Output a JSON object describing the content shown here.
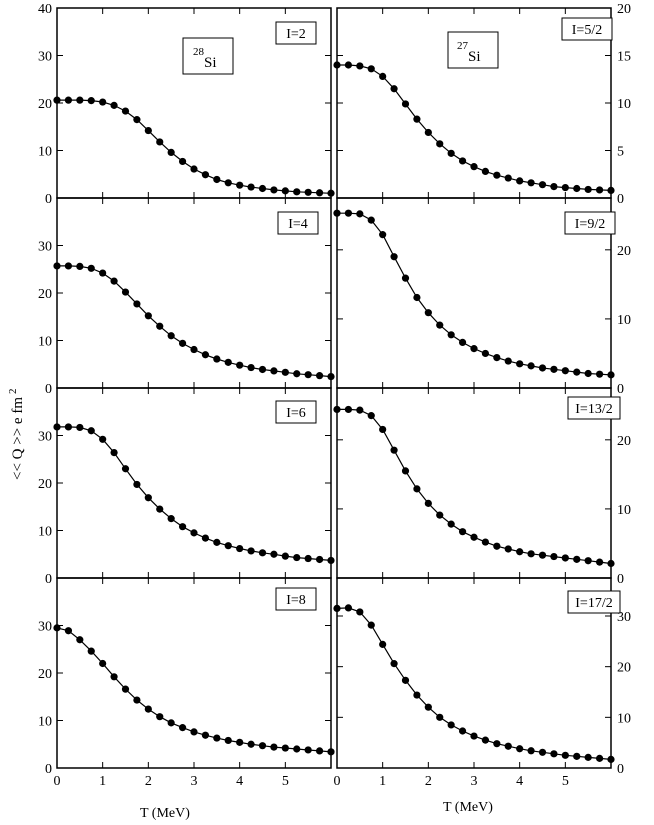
{
  "figure": {
    "xlabel": "T (MeV)",
    "ylabel_main": "<< Q >> e fm",
    "ylabel_sup": "2",
    "nuclei": [
      {
        "mass": "28",
        "symbol": "Si"
      },
      {
        "mass": "27",
        "symbol": "Si"
      }
    ]
  },
  "chart_data": [
    {
      "type": "line",
      "nucleus": "28Si",
      "panel_label": "I=2",
      "xlim": [
        0,
        6
      ],
      "ylim": [
        0,
        40
      ],
      "yticks": [
        "0",
        "10",
        "20",
        "30",
        "40"
      ],
      "xticks": [
        "0",
        "1",
        "2",
        "3",
        "4",
        "5"
      ],
      "axis_side": "left",
      "x": [
        0,
        0.25,
        0.5,
        0.75,
        1,
        1.25,
        1.5,
        1.75,
        2,
        2.25,
        2.5,
        2.75,
        3,
        3.25,
        3.5,
        3.75,
        4,
        4.25,
        4.5,
        4.75,
        5,
        5.25,
        5.5,
        5.75,
        6
      ],
      "y": [
        20.6,
        20.6,
        20.6,
        20.5,
        20.2,
        19.5,
        18.3,
        16.5,
        14.2,
        11.8,
        9.6,
        7.7,
        6.1,
        4.9,
        3.9,
        3.2,
        2.7,
        2.3,
        2.0,
        1.7,
        1.5,
        1.3,
        1.2,
        1.1,
        1.0
      ]
    },
    {
      "type": "line",
      "nucleus": "27Si",
      "panel_label": "I=5/2",
      "xlim": [
        0,
        6
      ],
      "ylim": [
        0,
        20
      ],
      "yticks": [
        "0",
        "5",
        "10",
        "15",
        "20"
      ],
      "xticks": [
        "0",
        "1",
        "2",
        "3",
        "4",
        "5"
      ],
      "axis_side": "right",
      "x": [
        0,
        0.25,
        0.5,
        0.75,
        1,
        1.25,
        1.5,
        1.75,
        2,
        2.25,
        2.5,
        2.75,
        3,
        3.25,
        3.5,
        3.75,
        4,
        4.25,
        4.5,
        4.75,
        5,
        5.25,
        5.5,
        5.75,
        6
      ],
      "y": [
        14.0,
        14.0,
        13.9,
        13.6,
        12.8,
        11.5,
        9.9,
        8.3,
        6.9,
        5.7,
        4.7,
        3.9,
        3.3,
        2.8,
        2.4,
        2.1,
        1.8,
        1.6,
        1.4,
        1.2,
        1.1,
        1.0,
        0.9,
        0.85,
        0.8
      ]
    },
    {
      "type": "line",
      "nucleus": "28Si",
      "panel_label": "I=4",
      "xlim": [
        0,
        6
      ],
      "ylim": [
        0,
        40
      ],
      "yticks": [
        "0",
        "10",
        "20",
        "30"
      ],
      "xticks": [
        "0",
        "1",
        "2",
        "3",
        "4",
        "5"
      ],
      "axis_side": "left",
      "x": [
        0,
        0.25,
        0.5,
        0.75,
        1,
        1.25,
        1.5,
        1.75,
        2,
        2.25,
        2.5,
        2.75,
        3,
        3.25,
        3.5,
        3.75,
        4,
        4.25,
        4.5,
        4.75,
        5,
        5.25,
        5.5,
        5.75,
        6
      ],
      "y": [
        25.7,
        25.7,
        25.6,
        25.2,
        24.2,
        22.5,
        20.2,
        17.7,
        15.2,
        13.0,
        11.0,
        9.4,
        8.1,
        7.0,
        6.1,
        5.4,
        4.8,
        4.3,
        3.9,
        3.6,
        3.3,
        3.0,
        2.8,
        2.6,
        2.4
      ]
    },
    {
      "type": "line",
      "nucleus": "27Si",
      "panel_label": "I=9/2",
      "xlim": [
        0,
        6
      ],
      "ylim": [
        0,
        27.5
      ],
      "yticks": [
        "0",
        "10",
        "20"
      ],
      "xticks": [
        "0",
        "1",
        "2",
        "3",
        "4",
        "5"
      ],
      "axis_side": "right",
      "x": [
        0,
        0.25,
        0.5,
        0.75,
        1,
        1.25,
        1.5,
        1.75,
        2,
        2.25,
        2.5,
        2.75,
        3,
        3.25,
        3.5,
        3.75,
        4,
        4.25,
        4.5,
        4.75,
        5,
        5.25,
        5.5,
        5.75,
        6
      ],
      "y": [
        25.3,
        25.3,
        25.2,
        24.3,
        22.2,
        19.0,
        15.9,
        13.1,
        10.9,
        9.1,
        7.7,
        6.6,
        5.7,
        5.0,
        4.4,
        3.9,
        3.5,
        3.2,
        2.9,
        2.7,
        2.5,
        2.3,
        2.1,
        2.0,
        1.9
      ]
    },
    {
      "type": "line",
      "nucleus": "28Si",
      "panel_label": "I=6",
      "xlim": [
        0,
        6
      ],
      "ylim": [
        0,
        40
      ],
      "yticks": [
        "0",
        "10",
        "20",
        "30"
      ],
      "xticks": [
        "0",
        "1",
        "2",
        "3",
        "4",
        "5"
      ],
      "axis_side": "left",
      "x": [
        0,
        0.25,
        0.5,
        0.75,
        1,
        1.25,
        1.5,
        1.75,
        2,
        2.25,
        2.5,
        2.75,
        3,
        3.25,
        3.5,
        3.75,
        4,
        4.25,
        4.5,
        4.75,
        5,
        5.25,
        5.5,
        5.75,
        6
      ],
      "y": [
        31.8,
        31.8,
        31.7,
        31.0,
        29.2,
        26.4,
        23.0,
        19.7,
        16.9,
        14.5,
        12.5,
        10.8,
        9.5,
        8.4,
        7.5,
        6.8,
        6.2,
        5.7,
        5.3,
        5.0,
        4.6,
        4.3,
        4.1,
        3.9,
        3.7
      ]
    },
    {
      "type": "line",
      "nucleus": "27Si",
      "panel_label": "I=13/2",
      "xlim": [
        0,
        6
      ],
      "ylim": [
        0,
        27.5
      ],
      "yticks": [
        "0",
        "10",
        "20"
      ],
      "xticks": [
        "0",
        "1",
        "2",
        "3",
        "4",
        "5"
      ],
      "axis_side": "right",
      "x": [
        0,
        0.25,
        0.5,
        0.75,
        1,
        1.25,
        1.5,
        1.75,
        2,
        2.25,
        2.5,
        2.75,
        3,
        3.25,
        3.5,
        3.75,
        4,
        4.25,
        4.5,
        4.75,
        5,
        5.25,
        5.5,
        5.75,
        6
      ],
      "y": [
        24.4,
        24.4,
        24.3,
        23.5,
        21.5,
        18.5,
        15.5,
        12.9,
        10.8,
        9.1,
        7.8,
        6.7,
        5.9,
        5.2,
        4.6,
        4.2,
        3.8,
        3.5,
        3.3,
        3.1,
        2.9,
        2.7,
        2.5,
        2.3,
        2.1
      ]
    },
    {
      "type": "line",
      "nucleus": "28Si",
      "panel_label": "I=8",
      "xlim": [
        0,
        6
      ],
      "ylim": [
        0,
        40
      ],
      "yticks": [
        "0",
        "10",
        "20",
        "30"
      ],
      "xticks": [
        "0",
        "1",
        "2",
        "3",
        "4",
        "5"
      ],
      "axis_side": "left",
      "x": [
        0,
        0.25,
        0.5,
        0.75,
        1,
        1.25,
        1.5,
        1.75,
        2,
        2.25,
        2.5,
        2.75,
        3,
        3.25,
        3.5,
        3.75,
        4,
        4.25,
        4.5,
        4.75,
        5,
        5.25,
        5.5,
        5.75,
        6
      ],
      "y": [
        29.5,
        28.9,
        27.0,
        24.6,
        22.0,
        19.2,
        16.6,
        14.3,
        12.4,
        10.8,
        9.5,
        8.5,
        7.6,
        6.9,
        6.3,
        5.8,
        5.4,
        5.0,
        4.7,
        4.4,
        4.2,
        4.0,
        3.8,
        3.6,
        3.4
      ]
    },
    {
      "type": "line",
      "nucleus": "27Si",
      "panel_label": "I=17/2",
      "xlim": [
        0,
        6
      ],
      "ylim": [
        0,
        37.5
      ],
      "yticks": [
        "0",
        "10",
        "20",
        "30"
      ],
      "xticks": [
        "0",
        "1",
        "2",
        "3",
        "4",
        "5"
      ],
      "axis_side": "right",
      "x": [
        0,
        0.25,
        0.5,
        0.75,
        1,
        1.25,
        1.5,
        1.75,
        2,
        2.25,
        2.5,
        2.75,
        3,
        3.25,
        3.5,
        3.75,
        4,
        4.25,
        4.5,
        4.75,
        5,
        5.25,
        5.5,
        5.75,
        6
      ],
      "y": [
        31.5,
        31.6,
        30.8,
        28.2,
        24.4,
        20.6,
        17.3,
        14.4,
        12.0,
        10.0,
        8.5,
        7.3,
        6.3,
        5.5,
        4.8,
        4.3,
        3.8,
        3.4,
        3.1,
        2.8,
        2.5,
        2.3,
        2.1,
        1.9,
        1.7
      ]
    }
  ]
}
